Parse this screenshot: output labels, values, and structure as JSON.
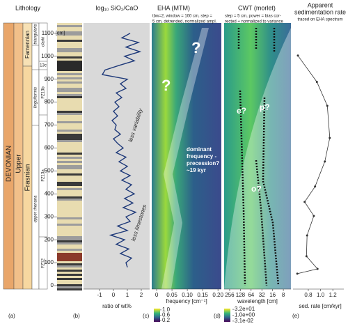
{
  "panels": {
    "a": {
      "letter": "(a)",
      "title": "Lithology",
      "system": "DEVONIAN",
      "series": "Upper",
      "stages": [
        "Famennian",
        "Frasnian"
      ],
      "zones": [
        "triangularis",
        "clarki",
        "13c",
        "linguiformis",
        "FZ13b",
        "FZ13a",
        "upper rhenana",
        "FZ12"
      ],
      "depth_unit": "[cm]"
    },
    "c": {
      "letter": "(c)",
      "title": "EHA (MTM)",
      "subtitle": [
        "tbw=2, window = 100 cm, step =",
        "5 cm, detrended, normalized ampl."
      ],
      "xlabel": "frequency [cm⁻¹]",
      "xlim": [
        -0.016,
        0.211
      ],
      "xticks": [
        0,
        0.05,
        {
          "value": 0.1,
          "label": "0.10"
        },
        0.15,
        {
          "value": 0.2,
          "label": "0.20"
        }
      ],
      "clim": [
        0.1,
        1.1
      ],
      "cticks": [
        {
          "value": 1,
          "label": "1.0"
        },
        0.6,
        0.2
      ],
      "annotations": [
        "?",
        "?"
      ],
      "note": [
        "dominant",
        "frequency -",
        "precession?",
        "~19 kyr"
      ]
    },
    "d": {
      "letter": "(d)",
      "title": "CWT (morlet)",
      "subtitle": [
        "step = 5 cm, power = bias cor-",
        "rected + normalized to variance"
      ],
      "xlabel": "wavelength [cm]",
      "log_scale": true,
      "xlim": [
        366,
        4.9
      ],
      "xticks": [
        256,
        128,
        64,
        32,
        16,
        8
      ],
      "clim": [
        0.02,
        50
      ],
      "cticks": [
        {
          "value": 32,
          "label": "3.2e+01"
        },
        {
          "value": 1,
          "label": "1.0e+00"
        },
        {
          "value": 0.031,
          "label": "3.1e-02"
        }
      ],
      "annotations": [
        "e?",
        "p?",
        "o?"
      ]
    }
  },
  "chart_data": [
    {
      "type": "line",
      "letter": "(b)",
      "title": "log₁₀ SiO₂/CaO",
      "xlabel": "ratio of wt%",
      "color": "#1f3a7a",
      "xlim": [
        -2.15,
        2.6
      ],
      "xticks": [
        -1,
        0,
        1,
        2
      ],
      "ylim": [
        -15,
        1145
      ],
      "yticks": [
        0,
        100,
        200,
        300,
        400,
        500,
        600,
        700,
        800,
        900,
        1000,
        1100
      ],
      "annotations": [
        "less variability",
        "less limestones"
      ],
      "depth": [
        1100,
        1080,
        1060,
        1040,
        1020,
        1000,
        980,
        960,
        940,
        920,
        900,
        880,
        860,
        840,
        820,
        800,
        780,
        760,
        740,
        720,
        700,
        680,
        660,
        640,
        620,
        600,
        580,
        560,
        540,
        520,
        500,
        480,
        460,
        440,
        420,
        400,
        380,
        360,
        340,
        320,
        300,
        280,
        260,
        240,
        220,
        200,
        180,
        160,
        140,
        120,
        100,
        80
      ],
      "values": [
        1.2,
        0.6,
        1.8,
        0.9,
        1.9,
        0.8,
        1.5,
        0.4,
        -0.6,
        -0.8,
        1.0,
        0.5,
        0.9,
        0.2,
        0.6,
        0.1,
        0.4,
        0.0,
        0.3,
        -0.1,
        0.2,
        0.1,
        0.5,
        0.0,
        0.3,
        0.7,
        0.2,
        0.9,
        0.4,
        1.0,
        0.5,
        1.2,
        0.6,
        1.3,
        0.9,
        1.5,
        0.8,
        1.4,
        0.7,
        1.6,
        0.9,
        1.2,
        0.3,
        1.0,
        -0.2,
        0.8,
        0.2,
        1.1,
        0.5,
        1.3,
        0.9,
        1.0
      ]
    },
    {
      "type": "line",
      "letter": "(e)",
      "title": "Apparent",
      "subtitle": "sedimentation rate",
      "note": "traced on EHA spectrum",
      "xlabel": "sed. rate [cm/kyr]",
      "color": "#333333",
      "xlim": [
        0.55,
        1.38
      ],
      "xticks": [
        0.8,
        {
          "value": 1,
          "label": "1.0"
        },
        1.2
      ],
      "ylim": [
        -15,
        1145
      ],
      "depth": [
        1003,
        888,
        784,
        644,
        541,
        432,
        365,
        304,
        219,
        128,
        73,
        52
      ],
      "values": [
        0.63,
        0.94,
        1.11,
        1.15,
        1.07,
        0.91,
        0.74,
        0.89,
        0.78,
        0.77,
        0.95,
        0.62
      ]
    }
  ]
}
